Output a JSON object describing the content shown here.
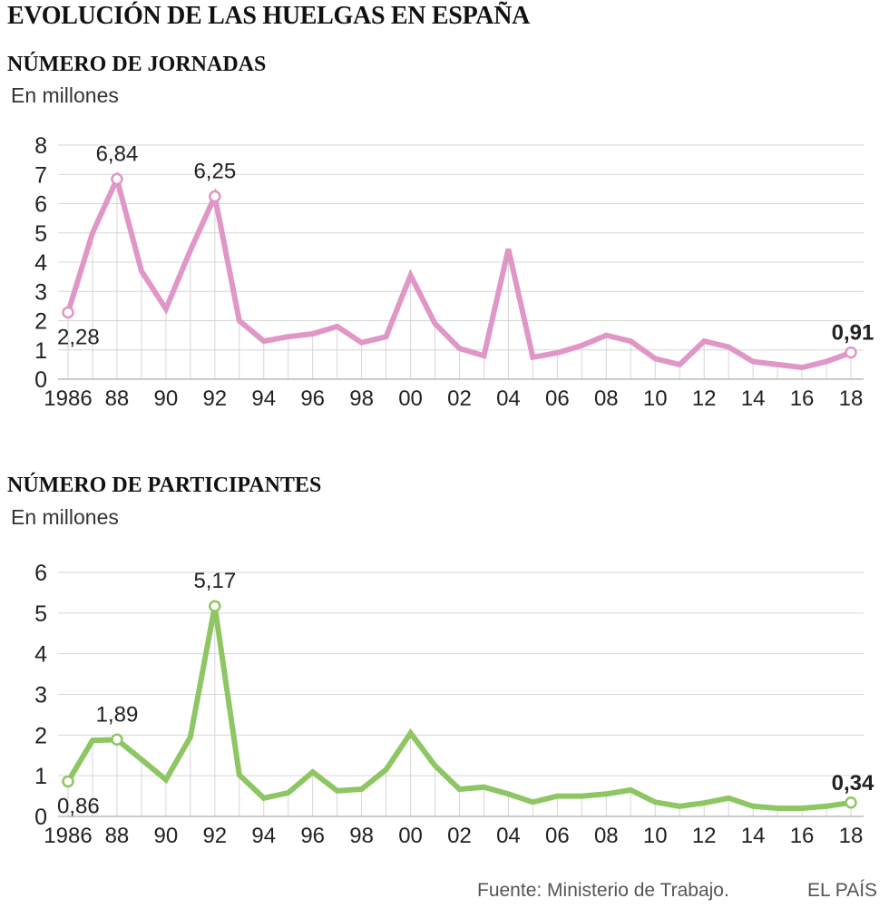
{
  "title": "EVOLUCIÓN DE LAS HUELGAS EN ESPAÑA",
  "source": "Fuente: Ministerio de Trabajo.",
  "brand": "EL PAÍS",
  "x_tick_labels": [
    "1986",
    "88",
    "90",
    "92",
    "94",
    "96",
    "98",
    "00",
    "02",
    "04",
    "06",
    "08",
    "10",
    "12",
    "14",
    "16",
    "18"
  ],
  "colors": {
    "jornadas": "#e096c6",
    "participantes": "#8dc663",
    "grid": "#d6d6d6"
  },
  "chart_data": [
    {
      "type": "line",
      "title": "NÚMERO DE JORNADAS",
      "ylabel": "En millones",
      "ylim": [
        0,
        8
      ],
      "yticks": [
        0,
        1,
        2,
        3,
        4,
        5,
        6,
        7,
        8
      ],
      "x": [
        1986,
        1987,
        1988,
        1989,
        1990,
        1991,
        1992,
        1993,
        1994,
        1995,
        1996,
        1997,
        1998,
        1999,
        2000,
        2001,
        2002,
        2003,
        2004,
        2005,
        2006,
        2007,
        2008,
        2009,
        2010,
        2011,
        2012,
        2013,
        2014,
        2015,
        2016,
        2017,
        2018
      ],
      "series": [
        {
          "values": [
            2.28,
            5.0,
            6.84,
            3.7,
            2.4,
            4.4,
            6.25,
            2.0,
            1.3,
            1.45,
            1.55,
            1.8,
            1.25,
            1.45,
            3.55,
            1.9,
            1.05,
            0.8,
            4.45,
            0.75,
            0.9,
            1.15,
            1.5,
            1.3,
            0.7,
            0.5,
            1.3,
            1.1,
            0.6,
            0.5,
            0.4,
            0.6,
            0.91
          ]
        }
      ],
      "annotations": [
        {
          "x": 1986,
          "label": "2,28",
          "bold": false
        },
        {
          "x": 1988,
          "label": "6,84",
          "bold": false
        },
        {
          "x": 1992,
          "label": "6,25",
          "bold": false
        },
        {
          "x": 2018,
          "label": "0,91",
          "bold": true
        }
      ]
    },
    {
      "type": "line",
      "title": "NÚMERO DE PARTICIPANTES",
      "ylabel": "En millones",
      "ylim": [
        0,
        6
      ],
      "yticks": [
        0,
        1,
        2,
        3,
        4,
        5,
        6
      ],
      "x": [
        1986,
        1987,
        1988,
        1989,
        1990,
        1991,
        1992,
        1993,
        1994,
        1995,
        1996,
        1997,
        1998,
        1999,
        2000,
        2001,
        2002,
        2003,
        2004,
        2005,
        2006,
        2007,
        2008,
        2009,
        2010,
        2011,
        2012,
        2013,
        2014,
        2015,
        2016,
        2017,
        2018
      ],
      "series": [
        {
          "values": [
            0.86,
            1.87,
            1.89,
            1.4,
            0.9,
            1.95,
            5.17,
            1.02,
            0.45,
            0.58,
            1.09,
            0.63,
            0.67,
            1.15,
            2.05,
            1.25,
            0.67,
            0.72,
            0.55,
            0.35,
            0.5,
            0.5,
            0.55,
            0.65,
            0.35,
            0.25,
            0.33,
            0.45,
            0.25,
            0.2,
            0.2,
            0.25,
            0.34
          ]
        }
      ],
      "annotations": [
        {
          "x": 1986,
          "label": "0,86",
          "bold": false
        },
        {
          "x": 1988,
          "label": "1,89",
          "bold": false
        },
        {
          "x": 1992,
          "label": "5,17",
          "bold": false
        },
        {
          "x": 2018,
          "label": "0,34",
          "bold": true
        }
      ]
    }
  ]
}
